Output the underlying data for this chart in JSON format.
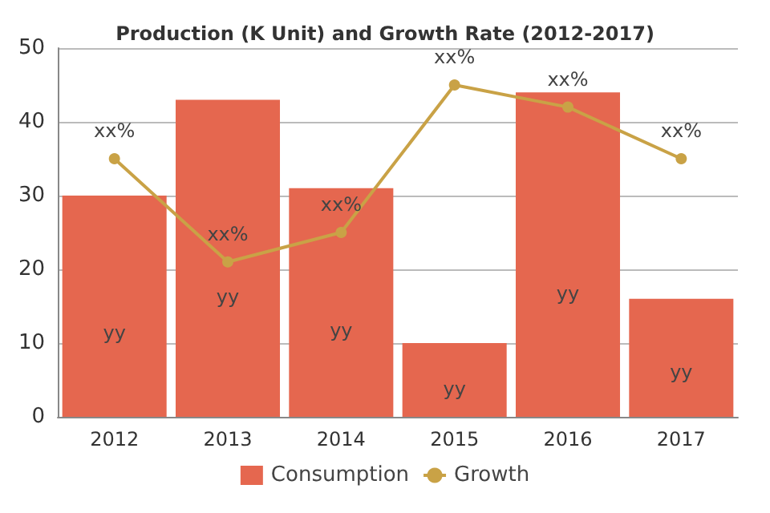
{
  "chart_data": {
    "type": "bar",
    "title": "Production (K Unit) and Growth Rate (2012-2017)",
    "categories": [
      "2012",
      "2013",
      "2014",
      "2015",
      "2016",
      "2017"
    ],
    "series": [
      {
        "name": "Consumption",
        "color": "#e5674f",
        "values": [
          30,
          43,
          31,
          10,
          44,
          16
        ],
        "value_labels": [
          "yy",
          "yy",
          "yy",
          "yy",
          "yy",
          "yy"
        ]
      },
      {
        "name": "Growth",
        "type": "line",
        "color": "#c9a246",
        "values": [
          35,
          21,
          25,
          45,
          42,
          35
        ],
        "value_labels": [
          "xx%",
          "xx%",
          "xx%",
          "xx%",
          "xx%",
          "xx%"
        ]
      }
    ],
    "ylim": [
      0,
      50
    ],
    "yticks": [
      0,
      10,
      20,
      30,
      40,
      50
    ],
    "grid": "y",
    "legend": "bottom",
    "marker": "circle"
  }
}
